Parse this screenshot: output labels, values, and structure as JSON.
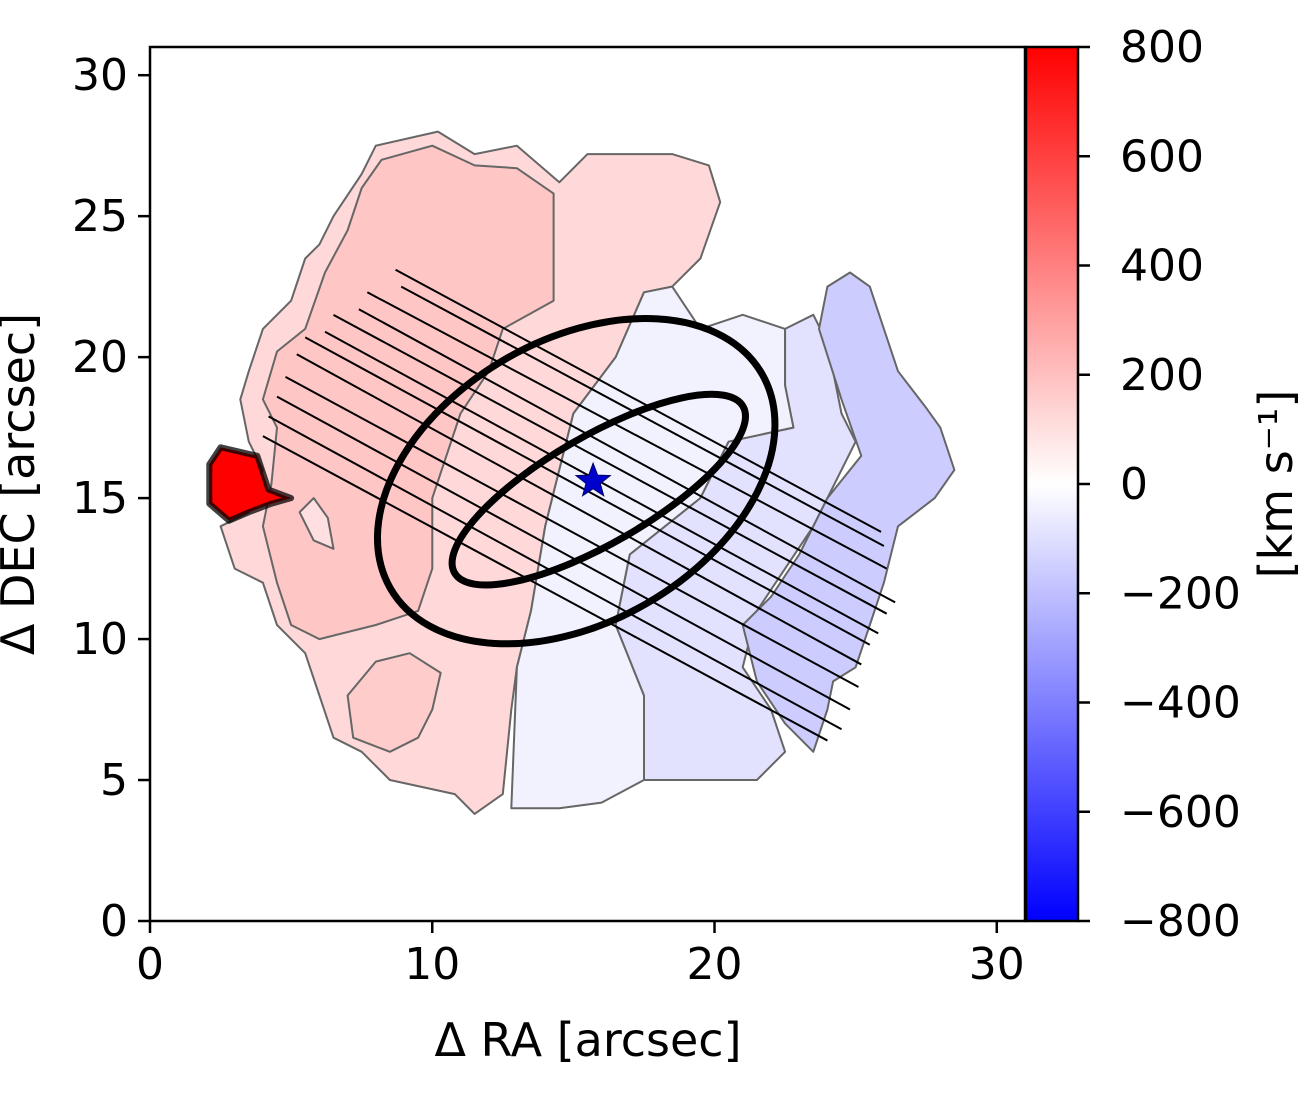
{
  "chart_data": {
    "type": "heatmap",
    "subtype": "velocity-map",
    "title": "",
    "xlabel": "Δ RA  [arcsec]",
    "ylabel": "Δ DEC [arcsec]",
    "xlim": [
      0,
      31
    ],
    "ylim": [
      0,
      31
    ],
    "xticks": [
      0,
      10,
      20,
      30
    ],
    "yticks": [
      0,
      5,
      10,
      15,
      20,
      25,
      30
    ],
    "grid": false,
    "colorbar": {
      "label": "[km s⁻¹]",
      "range": [
        -800,
        800
      ],
      "ticks": [
        800,
        600,
        400,
        200,
        0,
        -200,
        -400,
        -600,
        -800
      ],
      "tick_labels": [
        "800",
        "600",
        "400",
        "200",
        "0",
        "−200",
        "−400",
        "−600",
        "−800"
      ],
      "colormap": "bwr",
      "color_min": "#0000ff",
      "color_mid": "#ffffff",
      "color_max": "#ff0000"
    },
    "regions": [
      {
        "name": "outer-east",
        "velocity": 120,
        "polygon": [
          [
            8,
            27.5
          ],
          [
            10.2,
            28
          ],
          [
            11.5,
            27.2
          ],
          [
            13,
            27.5
          ],
          [
            14.5,
            26.2
          ],
          [
            15.5,
            27.2
          ],
          [
            18.5,
            27.2
          ],
          [
            19.8,
            26.8
          ],
          [
            20.2,
            25.5
          ],
          [
            19.5,
            23.5
          ],
          [
            18.5,
            22.5
          ],
          [
            17.5,
            22.3
          ],
          [
            16.5,
            20
          ],
          [
            15,
            18
          ],
          [
            14,
            14
          ],
          [
            13.5,
            11
          ],
          [
            13,
            9
          ],
          [
            12.8,
            7.5
          ],
          [
            12.5,
            4.5
          ],
          [
            11.5,
            3.8
          ],
          [
            10.8,
            4.5
          ],
          [
            8.5,
            5
          ],
          [
            7.5,
            6
          ],
          [
            6.5,
            6.5
          ],
          [
            6,
            8
          ],
          [
            5.5,
            9.5
          ],
          [
            4.5,
            10.5
          ],
          [
            4,
            12
          ],
          [
            3,
            12.5
          ],
          [
            2.5,
            14
          ],
          [
            3.5,
            14.5
          ],
          [
            4,
            16
          ],
          [
            3.5,
            17
          ],
          [
            3.2,
            18.5
          ],
          [
            3.5,
            19.5
          ],
          [
            4,
            21
          ],
          [
            5,
            22
          ],
          [
            5.5,
            23.5
          ],
          [
            6,
            24
          ],
          [
            6.5,
            25
          ],
          [
            7.5,
            26.5
          ]
        ]
      },
      {
        "name": "inner-red",
        "velocity": 180,
        "polygon": [
          [
            8.2,
            27
          ],
          [
            10,
            27.5
          ],
          [
            11.5,
            26.8
          ],
          [
            13,
            26.7
          ],
          [
            14.3,
            25.8
          ],
          [
            14.3,
            22
          ],
          [
            12.5,
            21
          ],
          [
            12,
            19.5
          ],
          [
            11,
            18
          ],
          [
            10.5,
            16.5
          ],
          [
            10,
            15
          ],
          [
            10,
            12.5
          ],
          [
            9.5,
            11
          ],
          [
            8,
            10.5
          ],
          [
            6,
            10
          ],
          [
            5,
            10.5
          ],
          [
            4.5,
            12
          ],
          [
            4,
            14
          ],
          [
            4.3,
            15.5
          ],
          [
            4.5,
            17.5
          ],
          [
            4,
            18.5
          ],
          [
            4.5,
            20.2
          ],
          [
            5.5,
            21
          ],
          [
            6.2,
            23
          ],
          [
            7,
            24.5
          ],
          [
            7.5,
            26
          ]
        ]
      },
      {
        "name": "island-south",
        "velocity": 160,
        "polygon": [
          [
            7,
            8
          ],
          [
            8,
            9.2
          ],
          [
            9.2,
            9.5
          ],
          [
            10.3,
            8.8
          ],
          [
            10,
            7.5
          ],
          [
            9.5,
            6.5
          ],
          [
            8.5,
            6
          ],
          [
            7.2,
            6.5
          ]
        ]
      },
      {
        "name": "island-west",
        "velocity": 100,
        "polygon": [
          [
            5.3,
            14.5
          ],
          [
            5.8,
            13.5
          ],
          [
            6.5,
            13.2
          ],
          [
            6.3,
            14.3
          ],
          [
            5.8,
            15
          ]
        ]
      },
      {
        "name": "red-blob",
        "velocity": 800,
        "polygon": [
          [
            2.1,
            16.2
          ],
          [
            2.5,
            16.8
          ],
          [
            3.8,
            16.5
          ],
          [
            4.2,
            15.3
          ],
          [
            5,
            15
          ],
          [
            4.3,
            14.8
          ],
          [
            3.5,
            14.5
          ],
          [
            2.8,
            14.2
          ],
          [
            2.1,
            14.8
          ]
        ]
      },
      {
        "name": "central-west",
        "velocity": -40,
        "polygon": [
          [
            12.8,
            4
          ],
          [
            13,
            9
          ],
          [
            13.5,
            11
          ],
          [
            14,
            14
          ],
          [
            15,
            18
          ],
          [
            16.5,
            20
          ],
          [
            17.5,
            22.3
          ],
          [
            18.5,
            22.5
          ],
          [
            19.5,
            21
          ],
          [
            21,
            21.5
          ],
          [
            22.5,
            21
          ],
          [
            22.5,
            19
          ],
          [
            22.8,
            17.5
          ],
          [
            20.5,
            17
          ],
          [
            19.5,
            15
          ],
          [
            17,
            13
          ],
          [
            16.5,
            10.5
          ],
          [
            17.5,
            8
          ],
          [
            17.5,
            5
          ],
          [
            16,
            4.2
          ],
          [
            14.5,
            4
          ]
        ]
      },
      {
        "name": "central-east",
        "velocity": -90,
        "polygon": [
          [
            17.5,
            5
          ],
          [
            17.5,
            8
          ],
          [
            16.5,
            10.5
          ],
          [
            17,
            13
          ],
          [
            19.5,
            15
          ],
          [
            20.5,
            17
          ],
          [
            22.8,
            17.5
          ],
          [
            22.5,
            19
          ],
          [
            22.5,
            21
          ],
          [
            23.5,
            21.5
          ],
          [
            24,
            20.5
          ],
          [
            24.5,
            18
          ],
          [
            25,
            17
          ],
          [
            23.5,
            14
          ],
          [
            22.5,
            12.5
          ],
          [
            21.5,
            11
          ],
          [
            21,
            9
          ],
          [
            22,
            7.5
          ],
          [
            22.5,
            6
          ],
          [
            21.5,
            5
          ]
        ]
      },
      {
        "name": "blue-lobe",
        "velocity": -160,
        "polygon": [
          [
            22.5,
            7
          ],
          [
            21.5,
            8.5
          ],
          [
            21,
            10.5
          ],
          [
            22,
            11.5
          ],
          [
            23,
            13
          ],
          [
            24,
            15
          ],
          [
            25.2,
            16.5
          ],
          [
            24.5,
            18.5
          ],
          [
            23.7,
            21
          ],
          [
            24,
            22.5
          ],
          [
            24.8,
            23
          ],
          [
            25.5,
            22.5
          ],
          [
            26,
            21
          ],
          [
            26.5,
            19.5
          ],
          [
            27.5,
            18.2
          ],
          [
            28,
            17.5
          ],
          [
            28.5,
            16
          ],
          [
            27.8,
            15
          ],
          [
            26.5,
            14
          ],
          [
            26,
            12
          ],
          [
            25.5,
            10.5
          ],
          [
            25,
            9
          ],
          [
            24.2,
            8.5
          ],
          [
            24,
            7.5
          ],
          [
            23.5,
            6
          ]
        ]
      }
    ],
    "ellipses": [
      {
        "name": "outer-ellipse",
        "center": [
          15.1,
          15.6
        ],
        "semi_major": 7.6,
        "semi_minor": 5.0,
        "angle_deg": 30
      },
      {
        "name": "inner-ellipse",
        "center": [
          15.9,
          15.3
        ],
        "semi_major": 5.9,
        "semi_minor": 1.9,
        "angle_deg": 30
      }
    ],
    "hatch_lines": [
      {
        "x1": 8.7,
        "y1": 23.1,
        "x2": 25.9,
        "y2": 13.8
      },
      {
        "x1": 8.9,
        "y1": 22.5,
        "x2": 26.0,
        "y2": 13.3
      },
      {
        "x1": 7.7,
        "y1": 22.3,
        "x2": 26.1,
        "y2": 12.5
      },
      {
        "x1": 7.4,
        "y1": 21.7,
        "x2": 26.4,
        "y2": 11.3
      },
      {
        "x1": 6.5,
        "y1": 21.5,
        "x2": 26.1,
        "y2": 10.9
      },
      {
        "x1": 6.2,
        "y1": 20.9,
        "x2": 25.8,
        "y2": 10.2
      },
      {
        "x1": 5.5,
        "y1": 20.7,
        "x2": 25.5,
        "y2": 9.8
      },
      {
        "x1": 5.2,
        "y1": 20.1,
        "x2": 25.2,
        "y2": 9.1
      },
      {
        "x1": 4.8,
        "y1": 19.3,
        "x2": 25.1,
        "y2": 8.3
      },
      {
        "x1": 4.5,
        "y1": 18.6,
        "x2": 24.8,
        "y2": 7.5
      },
      {
        "x1": 4.2,
        "y1": 17.9,
        "x2": 24.5,
        "y2": 6.8
      },
      {
        "x1": 4.0,
        "y1": 17.2,
        "x2": 24.0,
        "y2": 6.4
      }
    ],
    "marker": {
      "name": "center-star",
      "x": 15.7,
      "y": 15.6,
      "color": "#0000cc"
    },
    "annotation_colors": {
      "contour": "#666666",
      "ellipse": "#000000",
      "hatch": "#000000"
    }
  }
}
